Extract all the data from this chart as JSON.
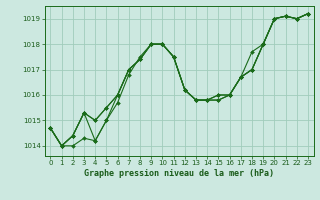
{
  "title": "Graphe pression niveau de la mer (hPa)",
  "text_color": "#1a5c1a",
  "bg_color": "#cce8e0",
  "grid_color": "#a0ccbb",
  "line_color": "#1a6b1a",
  "marker_color": "#1a6b1a",
  "ylim": [
    1013.6,
    1019.5
  ],
  "xlim": [
    -0.5,
    23.5
  ],
  "yticks": [
    1014,
    1015,
    1016,
    1017,
    1018,
    1019
  ],
  "xticks": [
    0,
    1,
    2,
    3,
    4,
    5,
    6,
    7,
    8,
    9,
    10,
    11,
    12,
    13,
    14,
    15,
    16,
    17,
    18,
    19,
    20,
    21,
    22,
    23
  ],
  "series": [
    [
      1014.7,
      1014.0,
      1014.0,
      1014.3,
      1014.2,
      1015.0,
      1015.7,
      1016.8,
      1017.5,
      1018.0,
      1018.0,
      1017.5,
      1016.2,
      1015.8,
      1015.8,
      1015.8,
      1016.0,
      1016.7,
      1017.0,
      1018.0,
      1019.0,
      1019.1,
      1019.0,
      1019.2
    ],
    [
      1014.7,
      1014.0,
      1014.4,
      1015.3,
      1015.0,
      1015.5,
      1016.0,
      1017.0,
      1017.4,
      1018.0,
      1018.0,
      1017.5,
      1016.2,
      1015.8,
      1015.8,
      1016.0,
      1016.0,
      1016.7,
      1017.0,
      1018.0,
      1019.0,
      1019.1,
      1019.0,
      1019.2
    ],
    [
      1014.7,
      1014.0,
      1014.4,
      1015.3,
      1015.0,
      1015.5,
      1016.0,
      1017.0,
      1017.4,
      1018.0,
      1018.0,
      1017.5,
      1016.2,
      1015.8,
      1015.8,
      1016.0,
      1016.0,
      1016.7,
      1017.7,
      1018.0,
      1019.0,
      1019.1,
      1019.0,
      1019.2
    ],
    [
      1014.7,
      1014.0,
      1014.4,
      1015.3,
      1014.2,
      1015.0,
      1016.0,
      1017.0,
      1017.4,
      1018.0,
      1018.0,
      1017.5,
      1016.2,
      1015.8,
      1015.8,
      1015.8,
      1016.0,
      1016.7,
      1017.0,
      1018.0,
      1019.0,
      1019.1,
      1019.0,
      1019.2
    ]
  ]
}
